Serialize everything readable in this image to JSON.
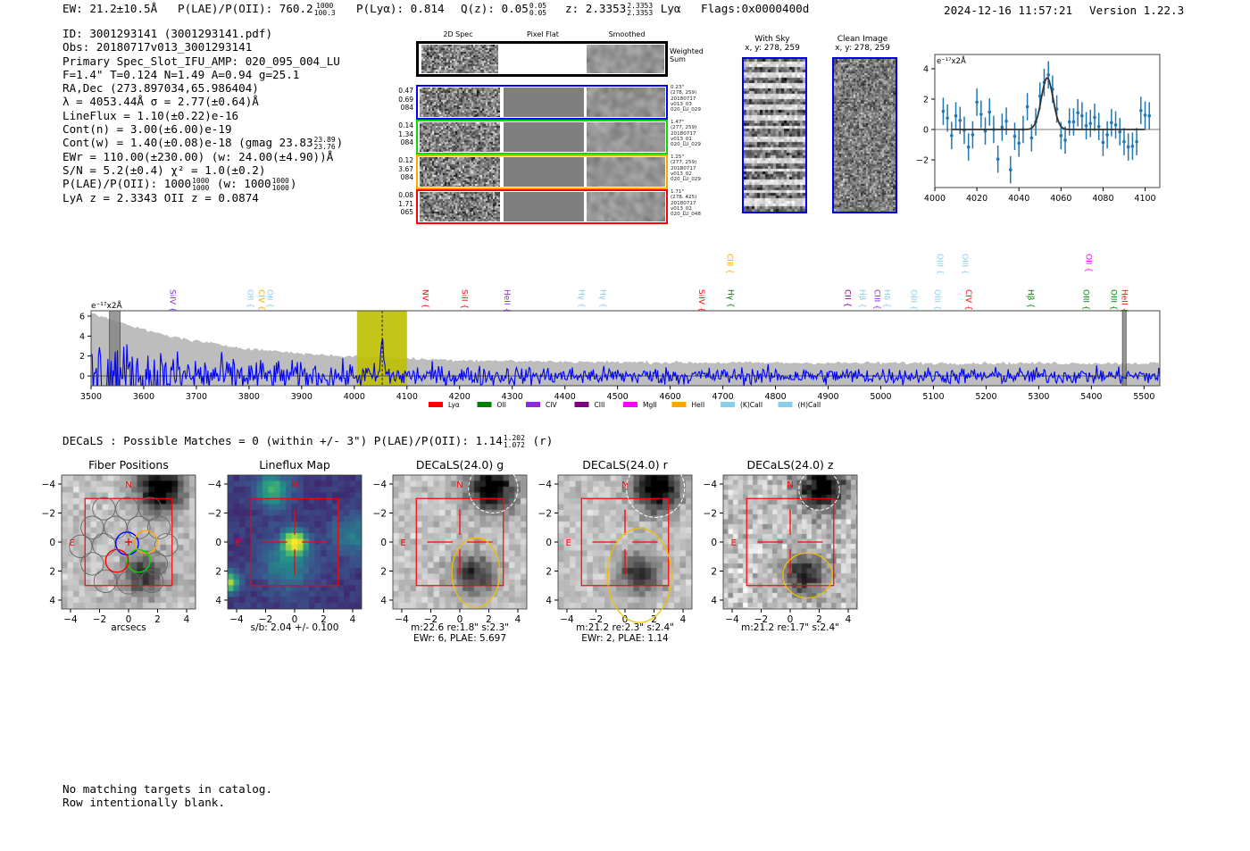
{
  "header": {
    "ew": "EW: 21.2±10.5Å",
    "plae_label": "P(LAE)/P(OII): 760.2",
    "plae_hi": "1000",
    "plae_lo": "100.3",
    "plya": "P(Lyα): 0.814",
    "qz_label": "Q(z): 0.05",
    "qz_hi": "0.05",
    "qz_lo": "0.05",
    "z_label": "z: 2.3353",
    "z_hi": "2.3353",
    "z_lo": "2.3353",
    "line": "Lyα",
    "flags": "Flags:0x0000400d",
    "timestamp": "2024-12-16 11:57:21",
    "version": "Version 1.22.3"
  },
  "info": {
    "id": "ID: 3001293141 (3001293141.pdf)",
    "obs": "Obs: 20180717v013_3001293141",
    "primary": "Primary Spec_Slot_IFU_AMP: 020_095_004_LU",
    "params": "F=1.4\"  T=0.124  N=1.49  A=0.94  g=25.1",
    "radec": "RA,Dec (273.897034,65.986404)",
    "lambda": "λ = 4053.44Å   σ = 2.77(±0.64)Å",
    "lineflux": "LineFlux = 1.10(±0.22)e-16",
    "cont_n": "Cont(n) = 3.00(±6.00)e-19",
    "cont_w": "Cont(w) = 1.40(±0.08)e-18 (gmag 23.83",
    "cont_w_hi": "23.89",
    "cont_w_lo": "23.76",
    "cont_w_end": ")",
    "ewr": "EWr = 110.00(±230.00) (w: 24.00(±4.90))Å",
    "sn": "S/N = 5.2(±0.4)  χ² = 1.0(±0.2)",
    "plae": "P(LAE)/P(OII): 1000",
    "plae_hi": "1000",
    "plae_lo": "1000",
    "plae_w": "(w: 1000",
    "plae_w_hi": "1000",
    "plae_w_lo": "1000",
    "plae_w_end": ")",
    "z": "LyA z = 2.3343   OII z = 0.0874"
  },
  "spec2d": {
    "headers": [
      "2D Spec",
      "Pixel Flat",
      "Smoothed"
    ],
    "weighted_label": "Weighted Sum",
    "rows": [
      {
        "color": "#0000ff",
        "left": [
          "0.47",
          "0.69",
          "084"
        ],
        "right": [
          "0.23\"",
          "(278, 259)",
          "20180717",
          "v013_03",
          "020_LU_029"
        ]
      },
      {
        "color": "#00e000",
        "left": [
          "0.14",
          "1.34",
          "084"
        ],
        "right": [
          "1.47\"",
          "(277, 259)",
          "20180717",
          "v013_01",
          "020_LU_029"
        ]
      },
      {
        "color": "#ffa500",
        "left": [
          "0.12",
          "3.67",
          "084"
        ],
        "right": [
          "1.25\"",
          "(277, 259)",
          "20180717",
          "v013_02",
          "020_LU_029"
        ]
      },
      {
        "color": "#ff0000",
        "left": [
          "0.08",
          "1.71",
          "065"
        ],
        "right": [
          "1.71\"",
          "(278, 425)",
          "20180717",
          "v013_02",
          "020_LU_048"
        ]
      }
    ]
  },
  "cutouts": {
    "with_sky": {
      "title": "With Sky",
      "coords": "x, y: 278, 259"
    },
    "clean": {
      "title": "Clean Image",
      "coords": "x, y: 278, 259"
    }
  },
  "zoom_spec": {
    "unit": "e⁻¹⁷x2Å",
    "xticks": [
      "4000",
      "4020",
      "4040",
      "4060",
      "4080",
      "4100"
    ],
    "yticks": [
      "4",
      "2",
      "0",
      "−2"
    ],
    "xlim": [
      4000,
      4107
    ],
    "ylim": [
      -3.82,
      4.94
    ],
    "fit": {
      "center": 4053.44,
      "sigma": 2.77,
      "amp": 3.4
    },
    "points": [
      [
        4004,
        1.2
      ],
      [
        4006,
        0.75
      ],
      [
        4008,
        -0.4
      ],
      [
        4010,
        0.9
      ],
      [
        4012,
        0.6
      ],
      [
        4014,
        -0.05
      ],
      [
        4016,
        -1.15
      ],
      [
        4018,
        -0.35
      ],
      [
        4020,
        1.8
      ],
      [
        4022,
        1.0
      ],
      [
        4024,
        -0.1
      ],
      [
        4026,
        1.15
      ],
      [
        4028,
        0
      ],
      [
        4030,
        -1.95
      ],
      [
        4032,
        0.15
      ],
      [
        4034,
        0.55
      ],
      [
        4036,
        -2.65
      ],
      [
        4038,
        -0.45
      ],
      [
        4040,
        -0.9
      ],
      [
        4042,
        0
      ],
      [
        4044,
        1.5
      ],
      [
        4046,
        -0.55
      ],
      [
        4048,
        0.5
      ],
      [
        4050,
        2.2
      ],
      [
        4052,
        3.1
      ],
      [
        4054,
        3.6
      ],
      [
        4056,
        2.65
      ],
      [
        4058,
        1.35
      ],
      [
        4060,
        -0.4
      ],
      [
        4062,
        -0.7
      ],
      [
        4064,
        0.5
      ],
      [
        4066,
        0.5
      ],
      [
        4068,
        1.1
      ],
      [
        4070,
        0.9
      ],
      [
        4072,
        0.25
      ],
      [
        4074,
        0.4
      ],
      [
        4076,
        0.8
      ],
      [
        4078,
        0.2
      ],
      [
        4080,
        -0.85
      ],
      [
        4082,
        -0.35
      ],
      [
        4084,
        0.45
      ],
      [
        4086,
        0.3
      ],
      [
        4088,
        -0.15
      ],
      [
        4090,
        -0.8
      ],
      [
        4092,
        -1.15
      ],
      [
        4094,
        -1.1
      ],
      [
        4096,
        -0.8
      ],
      [
        4098,
        1.25
      ],
      [
        4100,
        0.95
      ],
      [
        4102,
        0.9
      ]
    ]
  },
  "full_spec": {
    "unit": "e⁻¹⁷x2Å",
    "xticks": [
      "3500",
      "3600",
      "3700",
      "3800",
      "3900",
      "4000",
      "4100",
      "4200",
      "4300",
      "4400",
      "4500",
      "4600",
      "4700",
      "4800",
      "4900",
      "5000",
      "5100",
      "5200",
      "5300",
      "5400",
      "5500"
    ],
    "yticks": [
      "6",
      "4",
      "2",
      "0"
    ],
    "xlim": [
      3500,
      5530
    ],
    "ylim": [
      -0.98,
      6.54
    ],
    "highlight": [
      4005,
      4100
    ],
    "line_center": 4053,
    "masked": [
      [
        3535,
        3555
      ],
      [
        5459,
        5466
      ]
    ],
    "lines": [
      {
        "name": "SiIV",
        "w": 3655,
        "c": "#8a2be2",
        "row": 0
      },
      {
        "name": "OII",
        "w": 3803,
        "c": "#87ceeb",
        "row": 0
      },
      {
        "name": "CIV",
        "w": 3824,
        "c": "#ffa500",
        "row": 0
      },
      {
        "name": "OII",
        "w": 3840,
        "c": "#87ceeb",
        "row": 0
      },
      {
        "name": "NV",
        "w": 4135,
        "c": "#ff0000",
        "row": 0
      },
      {
        "name": "SiII",
        "w": 4210,
        "c": "#ff0000",
        "row": 0
      },
      {
        "name": "HeII",
        "w": 4290,
        "c": "#8a2be2",
        "row": 0
      },
      {
        "name": "Hγ",
        "w": 4432,
        "c": "#87ceeb",
        "row": 0
      },
      {
        "name": "Hγ",
        "w": 4473,
        "c": "#87ceeb",
        "row": 0
      },
      {
        "name": "SiIV",
        "w": 4660,
        "c": "#ff0000",
        "row": 0
      },
      {
        "name": "CIII",
        "w": 4713,
        "c": "#ffa500",
        "row": 1
      },
      {
        "name": "Hγ",
        "w": 4715,
        "c": "#008000",
        "row": 0
      },
      {
        "name": "CII",
        "w": 4937,
        "c": "#800080",
        "row": 0
      },
      {
        "name": "Hβ",
        "w": 4965,
        "c": "#87ceeb",
        "row": 0
      },
      {
        "name": "CIII",
        "w": 4993,
        "c": "#8a2be2",
        "row": 0
      },
      {
        "name": "Hδ",
        "w": 5012,
        "c": "#87ceeb",
        "row": 0
      },
      {
        "name": "OIII",
        "w": 5063,
        "c": "#87ceeb",
        "row": 0
      },
      {
        "name": "OIII",
        "w": 5108,
        "c": "#87ceeb",
        "row": 0
      },
      {
        "name": "OIII",
        "w": 5113,
        "c": "#87ceeb",
        "row": 1
      },
      {
        "name": "OIII",
        "w": 5160,
        "c": "#87ceeb",
        "row": 1
      },
      {
        "name": "CIV",
        "w": 5167,
        "c": "#ff0000",
        "row": 0
      },
      {
        "name": "Hβ",
        "w": 5285,
        "c": "#008000",
        "row": 0
      },
      {
        "name": "OII",
        "w": 5395,
        "c": "#ff00ff",
        "row": 1
      },
      {
        "name": "OIII",
        "w": 5390,
        "c": "#008000",
        "row": 0
      },
      {
        "name": "OIII",
        "w": 5443,
        "c": "#008000",
        "row": 0
      },
      {
        "name": "HeII",
        "w": 5463,
        "c": "#ff0000",
        "row": 0
      }
    ],
    "legend": [
      {
        "name": "Lyα",
        "c": "#ff0000"
      },
      {
        "name": "OII",
        "c": "#008000"
      },
      {
        "name": "CIV",
        "c": "#8a2be2"
      },
      {
        "name": "CIII",
        "c": "#800080"
      },
      {
        "name": "MgII",
        "c": "#ff00ff"
      },
      {
        "name": "HeII",
        "c": "#ffa500"
      },
      {
        "name": "(K)CaII",
        "c": "#87ceeb"
      },
      {
        "name": "(H)CaII",
        "c": "#87ceeb"
      }
    ]
  },
  "decals": {
    "summary": "DECaLS : Possible Matches = 0 (within +/- 3\")  P(LAE)/P(OII): 1.14",
    "summary_hi": "1.202",
    "summary_lo": "1.072",
    "summary_end": "(r)",
    "ticks": [
      "−4",
      "−2",
      "0",
      "2",
      "4"
    ],
    "north": "N",
    "east": "E",
    "panels": [
      {
        "title": "Fiber Positions",
        "cap1": "arcsecs",
        "cap2": ""
      },
      {
        "title": "Lineflux Map",
        "cap1": "s/b: 2.04 +/- 0.100",
        "cap2": ""
      },
      {
        "title": "DECaLS(24.0) g",
        "cap1": "m:22.6  re:1.8\"  s:2.3\"",
        "cap2": "EWr: 6, PLAE: 5.697"
      },
      {
        "title": "DECaLS(24.0) r",
        "cap1": "m:21.2  re:2.3\"  s:2.4\"",
        "cap2": "EWr: 2, PLAE: 1.14"
      },
      {
        "title": "DECaLS(24.0) z",
        "cap1": "m:21.2  re:1.7\"  s:2.4\"",
        "cap2": ""
      }
    ]
  },
  "footer": {
    "line1": "No matching targets in catalog.",
    "line2": "Row intentionally blank."
  }
}
